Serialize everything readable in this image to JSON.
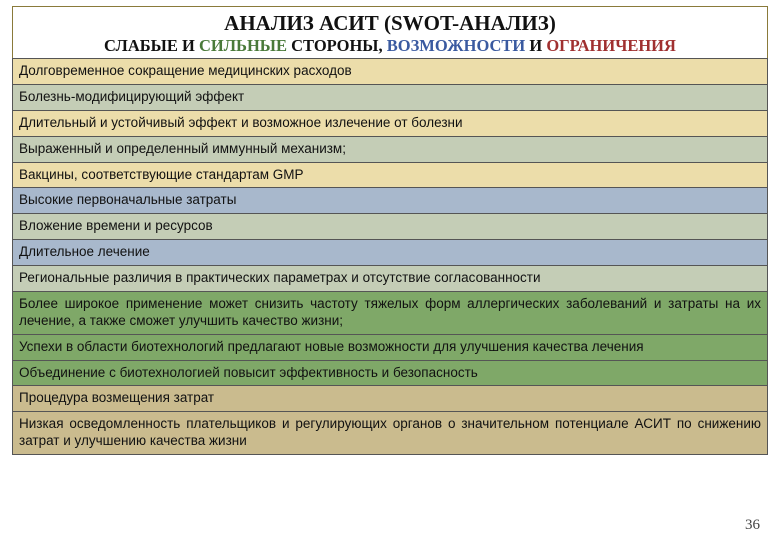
{
  "title": "АНАЛИЗ АСИТ (SWOT-АНАЛИЗ)",
  "subtitle": {
    "weak": "СЛАБЫЕ",
    "sep1": " И ",
    "strong": "СИЛЬНЫЕ",
    "mid": " СТОРОНЫ, ",
    "opp": "ВОЗМОЖНОСТИ",
    "sep2": " И ",
    "threat": "ОГРАНИЧЕНИЯ"
  },
  "colors": {
    "yellow": "#ecddaa",
    "grey": "#c4cdb6",
    "blue": "#a8b8cc",
    "green": "#7fa868",
    "tan": "#cabb8e"
  },
  "rows": [
    {
      "text": "Долговременное сокращение медицинских расходов",
      "bg": "yellow",
      "justify": false
    },
    {
      "text": "Болезнь-модифицирующий эффект",
      "bg": "grey",
      "justify": false
    },
    {
      "text": "Длительный и устойчивый эффект и возможное излечение от болезни",
      "bg": "yellow",
      "justify": false
    },
    {
      "text": "Выраженный и определенный иммунный механизм;",
      "bg": "grey",
      "justify": false
    },
    {
      "text": "Вакцины, соответствующие стандартам GMP",
      "bg": "yellow",
      "justify": false
    },
    {
      "text": "Высокие первоначальные затраты",
      "bg": "blue",
      "justify": false
    },
    {
      "text": "Вложение времени и ресурсов",
      "bg": "grey",
      "justify": false
    },
    {
      "text": "Длительное лечение",
      "bg": "blue",
      "justify": false
    },
    {
      "text": "Региональные различия в практических параметрах и отсутствие согласованности",
      "bg": "grey",
      "justify": false
    },
    {
      "text": "Более широкое применение может снизить частоту тяжелых форм аллергических заболеваний и затраты на их лечение, а также сможет улучшить качество жизни;",
      "bg": "green",
      "justify": true
    },
    {
      "text": "Успехи в области биотехнологий предлагают новые возможности для улучшения качества лечения",
      "bg": "green",
      "justify": true
    },
    {
      "text": "Объединение с биотехнологией повысит эффективность и безопасность",
      "bg": "green",
      "justify": false
    },
    {
      "text": "Процедура возмещения затрат",
      "bg": "tan",
      "justify": false
    },
    {
      "text": "Низкая осведомленность плательщиков и регулирующих органов о значительном потенциале АСИТ по снижению затрат и улучшению качества жизни",
      "bg": "tan",
      "justify": true
    }
  ],
  "page_num": "36"
}
